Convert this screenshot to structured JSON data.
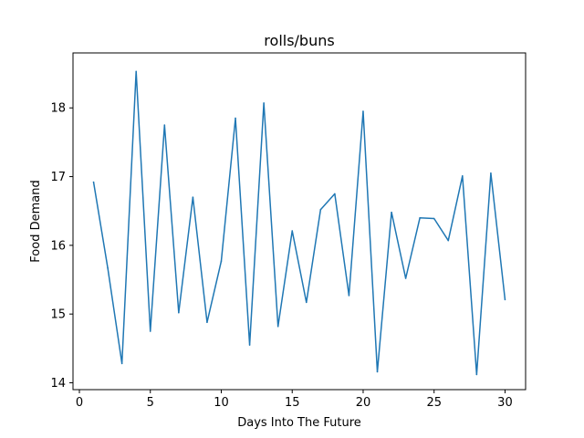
{
  "chart_data": {
    "type": "line",
    "title": "rolls/buns",
    "xlabel": "Days Into The Future",
    "ylabel": "Food Demand",
    "xlim": [
      -0.45,
      31.45
    ],
    "ylim": [
      13.9,
      18.8
    ],
    "xticks": [
      0,
      5,
      10,
      15,
      20,
      25,
      30
    ],
    "yticks": [
      14,
      15,
      16,
      17,
      18
    ],
    "grid": false,
    "series": [
      {
        "color": "#1f77b4",
        "x": [
          1,
          2,
          3,
          4,
          5,
          6,
          7,
          8,
          9,
          10,
          11,
          12,
          13,
          14,
          15,
          16,
          17,
          18,
          19,
          20,
          21,
          22,
          23,
          24,
          25,
          26,
          27,
          28,
          29,
          30
        ],
        "y": [
          16.92,
          15.67,
          14.28,
          18.53,
          14.75,
          17.75,
          15.02,
          16.7,
          14.88,
          15.77,
          17.85,
          14.55,
          18.07,
          14.82,
          16.21,
          15.17,
          16.52,
          16.75,
          15.27,
          17.95,
          14.16,
          16.48,
          15.52,
          16.4,
          16.39,
          16.07,
          17.01,
          14.12,
          17.05,
          15.21
        ]
      }
    ]
  }
}
